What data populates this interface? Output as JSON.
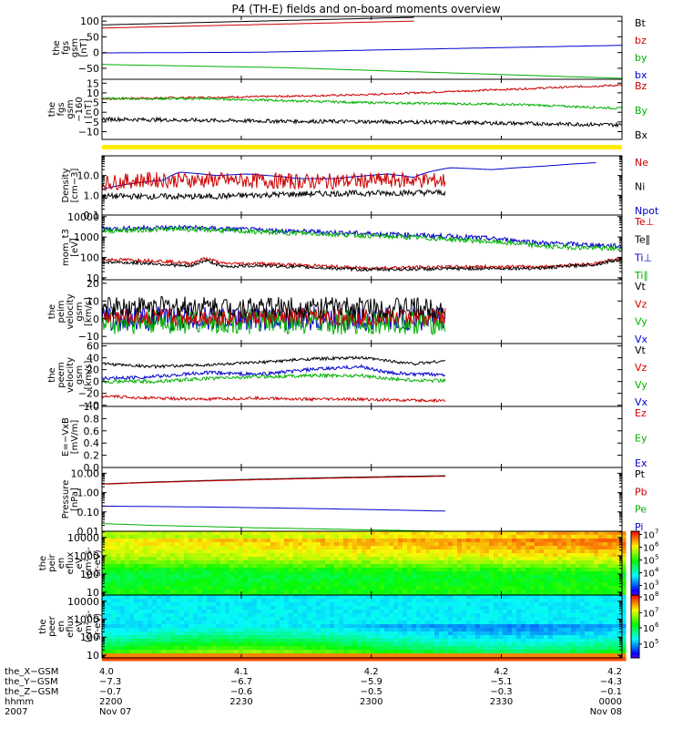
{
  "title": "P4 (TH-E) fields and on-board moments overview",
  "panels": [
    {
      "id": "fgs",
      "ylabel": [
        "the",
        "fgs",
        "gsm",
        "[nT]"
      ],
      "ticks": [
        {
          "v": 100,
          "l": "100"
        },
        {
          "v": 50,
          "l": "50"
        },
        {
          "v": 0,
          "l": "0"
        },
        {
          "v": -50,
          "l": "−50"
        }
      ],
      "ylim": [
        -85,
        115
      ],
      "log": false,
      "legend": [
        {
          "t": "Bt",
          "c": "#000000"
        },
        {
          "t": "bz",
          "c": "#cc0000"
        },
        {
          "t": "by",
          "c": "#00b000"
        },
        {
          "t": "bx",
          "c": "#0000cc"
        }
      ],
      "series": [
        {
          "name": "Bt",
          "color": "#000000",
          "x": [
            0,
            0.6
          ],
          "y": [
            88,
            112
          ]
        },
        {
          "name": "bz",
          "color": "#cc0000",
          "x": [
            0,
            0.6
          ],
          "y": [
            78,
            100
          ]
        },
        {
          "name": "by",
          "color": "#00b000",
          "x": [
            0,
            0.35,
            1
          ],
          "y": [
            -38,
            -48,
            -82
          ]
        },
        {
          "name": "bx",
          "color": "#0000cc",
          "x": [
            0,
            0.3,
            1
          ],
          "y": [
            -1,
            1,
            23
          ]
        }
      ]
    },
    {
      "id": "fgs-dsl",
      "ylabel": [
        "the",
        "fgs",
        "gsm",
        "−160",
        "[nT]"
      ],
      "ticks": [
        {
          "v": 15,
          "l": "15"
        },
        {
          "v": 10,
          "l": "10"
        },
        {
          "v": 5,
          "l": "5"
        },
        {
          "v": 0,
          "l": "0"
        },
        {
          "v": -5,
          "l": "−5"
        },
        {
          "v": -10,
          "l": "−10"
        }
      ],
      "ylim": [
        -14,
        17
      ],
      "log": false,
      "legend": [
        {
          "t": "Bz",
          "c": "#cc0000"
        },
        {
          "t": "By",
          "c": "#00b000"
        },
        {
          "t": "Bx",
          "c": "#000000"
        }
      ],
      "series": [
        {
          "name": "Bz",
          "color": "#cc0000",
          "x": [
            0,
            0.3,
            0.5,
            0.7,
            1
          ],
          "y": [
            7,
            8,
            9,
            11,
            14
          ],
          "noise": 0.5
        },
        {
          "name": "By",
          "color": "#00b000",
          "x": [
            0,
            0.2,
            0.5,
            0.8,
            1
          ],
          "y": [
            7,
            7,
            5,
            4,
            2
          ],
          "noise": 0.6
        },
        {
          "name": "Bx",
          "color": "#000000",
          "x": [
            0,
            0.3,
            0.6,
            1
          ],
          "y": [
            -3.5,
            -4.5,
            -5,
            -6.5
          ],
          "noise": 1.0
        }
      ]
    },
    {
      "id": "density",
      "ylabel": [
        "Density",
        "[cm−3]"
      ],
      "ticks": [
        {
          "v": 10,
          "l": "10.0"
        },
        {
          "v": 1,
          "l": "1.0"
        },
        {
          "v": 0.1,
          "l": "0.1"
        }
      ],
      "ylim": [
        0.1,
        100
      ],
      "log": true,
      "legend": [
        {
          "t": "Ne",
          "c": "#cc0000"
        },
        {
          "t": "Ni",
          "c": "#000000"
        },
        {
          "t": "Npot",
          "c": "#0000cc"
        }
      ],
      "series": [
        {
          "name": "Npot",
          "color": "#0000cc",
          "x": [
            0,
            0.12,
            0.15,
            0.22,
            0.28,
            0.38,
            0.45,
            0.55,
            0.6,
            0.67,
            0.75,
            0.85,
            0.95
          ],
          "y": [
            2,
            6,
            15,
            10,
            12,
            7,
            7,
            12,
            8,
            25,
            20,
            30,
            45
          ]
        },
        {
          "name": "Ne",
          "color": "#cc0000",
          "x": [
            0,
            0.08,
            0.2,
            0.4,
            0.6,
            0.66
          ],
          "y": [
            4,
            6,
            6,
            5,
            6,
            5.5
          ],
          "noise": 0.4
        },
        {
          "name": "Ni",
          "color": "#000000",
          "x": [
            0,
            0.2,
            0.4,
            0.66
          ],
          "y": [
            0.9,
            0.85,
            1.2,
            1.4
          ],
          "noise": 0.15
        }
      ]
    },
    {
      "id": "temperature",
      "ylabel": [
        "mom_t3",
        "[eV]"
      ],
      "ticks": [
        {
          "v": 10000,
          "l": "10000"
        },
        {
          "v": 1000,
          "l": "1000"
        },
        {
          "v": 100,
          "l": "100"
        },
        {
          "v": 10,
          "l": "10"
        }
      ],
      "ylim": [
        8,
        12000
      ],
      "log": true,
      "legend": [
        {
          "t": "Te⊥",
          "c": "#cc0000"
        },
        {
          "t": "Te∥",
          "c": "#000000"
        },
        {
          "t": "Ti⊥",
          "c": "#0000cc"
        },
        {
          "t": "Ti∥",
          "c": "#00b000"
        }
      ],
      "series": [
        {
          "name": "Ti⊥",
          "color": "#0000cc",
          "x": [
            0,
            0.15,
            0.3,
            0.5,
            0.7,
            0.85,
            1
          ],
          "y": [
            2500,
            3000,
            2200,
            1500,
            1000,
            500,
            350
          ],
          "noise": 0.12
        },
        {
          "name": "Ti∥",
          "color": "#00b000",
          "x": [
            0,
            0.15,
            0.3,
            0.5,
            0.7,
            0.85,
            1
          ],
          "y": [
            2000,
            2500,
            1800,
            1200,
            700,
            350,
            260
          ],
          "noise": 0.12
        },
        {
          "name": "Te⊥",
          "color": "#cc0000",
          "x": [
            0,
            0.1,
            0.17,
            0.2,
            0.23,
            0.3,
            0.5,
            0.7,
            0.85,
            0.95,
            1
          ],
          "y": [
            80,
            70,
            50,
            90,
            50,
            50,
            30,
            35,
            35,
            50,
            90
          ],
          "noise": 0.08
        },
        {
          "name": "Te∥",
          "color": "#000000",
          "x": [
            0,
            0.1,
            0.17,
            0.2,
            0.23,
            0.3,
            0.5,
            0.7,
            0.85,
            0.95,
            1
          ],
          "y": [
            60,
            50,
            35,
            70,
            35,
            40,
            25,
            28,
            30,
            45,
            80
          ],
          "noise": 0.08
        }
      ]
    },
    {
      "id": "ion-velocity",
      "ylabel": [
        "the",
        "peim",
        "velocity",
        "gsm",
        "[km/s]"
      ],
      "ticks": [
        {
          "v": 20,
          "l": "20"
        },
        {
          "v": 10,
          "l": "10"
        },
        {
          "v": 0,
          "l": "0"
        },
        {
          "v": -10,
          "l": "−10"
        }
      ],
      "ylim": [
        -14,
        22
      ],
      "log": false,
      "legend": [
        {
          "t": "Vt",
          "c": "#000000"
        },
        {
          "t": "Vz",
          "c": "#cc0000"
        },
        {
          "t": "Vy",
          "c": "#00b000"
        },
        {
          "t": "Vx",
          "c": "#0000cc"
        }
      ],
      "series": [
        {
          "name": "Vx",
          "color": "#0000cc",
          "x": [
            0,
            0.66
          ],
          "y": [
            0,
            0
          ],
          "noise": 7
        },
        {
          "name": "Vy",
          "color": "#00b000",
          "x": [
            0,
            0.66
          ],
          "y": [
            -2,
            -2
          ],
          "noise": 7
        },
        {
          "name": "Vz",
          "color": "#cc0000",
          "x": [
            0,
            0.66
          ],
          "y": [
            1,
            1
          ],
          "noise": 5
        },
        {
          "name": "Vt",
          "color": "#000000",
          "x": [
            0,
            0.66
          ],
          "y": [
            7,
            6
          ],
          "noise": 6
        }
      ]
    },
    {
      "id": "electron-velocity",
      "ylabel": [
        "the",
        "peem",
        "velocity",
        "gsm",
        "[km/s]"
      ],
      "ticks": [
        {
          "v": 60,
          "l": "60"
        },
        {
          "v": 40,
          "l": "40"
        },
        {
          "v": 20,
          "l": "20"
        },
        {
          "v": 0,
          "l": "0"
        },
        {
          "v": -20,
          "l": "−20"
        },
        {
          "v": -40,
          "l": "−40"
        }
      ],
      "ylim": [
        -42,
        64
      ],
      "log": false,
      "legend": [
        {
          "t": "Vt",
          "c": "#000000"
        },
        {
          "t": "Vz",
          "c": "#cc0000"
        },
        {
          "t": "Vy",
          "c": "#00b000"
        },
        {
          "t": "Vx",
          "c": "#0000cc"
        }
      ],
      "series": [
        {
          "name": "Vt",
          "color": "#000000",
          "x": [
            0,
            0.1,
            0.2,
            0.3,
            0.4,
            0.5,
            0.55,
            0.6,
            0.66
          ],
          "y": [
            30,
            25,
            28,
            32,
            38,
            40,
            35,
            30,
            35
          ],
          "noise": 2.5
        },
        {
          "name": "Vx",
          "color": "#0000cc",
          "x": [
            0,
            0.1,
            0.2,
            0.3,
            0.4,
            0.5,
            0.55,
            0.6,
            0.66
          ],
          "y": [
            5,
            8,
            15,
            12,
            20,
            25,
            15,
            12,
            12
          ],
          "noise": 3
        },
        {
          "name": "Vy",
          "color": "#00b000",
          "x": [
            0,
            0.1,
            0.2,
            0.3,
            0.4,
            0.5,
            0.55,
            0.6,
            0.66
          ],
          "y": [
            0,
            0,
            5,
            8,
            10,
            10,
            5,
            2,
            2
          ],
          "noise": 3
        },
        {
          "name": "Vz",
          "color": "#cc0000",
          "x": [
            0,
            0.1,
            0.2,
            0.3,
            0.4,
            0.5,
            0.6,
            0.66
          ],
          "y": [
            -25,
            -28,
            -30,
            -28,
            -30,
            -30,
            -32,
            -32
          ],
          "noise": 2.5
        }
      ]
    },
    {
      "id": "efield",
      "ylabel": [
        "E=−VxB",
        "[mV/m]"
      ],
      "ticks": [
        {
          "v": 1,
          "l": "1.0"
        },
        {
          "v": 0.8,
          "l": "0.8"
        },
        {
          "v": 0.6,
          "l": "0.6"
        },
        {
          "v": 0.4,
          "l": "0.4"
        },
        {
          "v": 0.2,
          "l": "0.2"
        },
        {
          "v": 0,
          "l": "0.0"
        }
      ],
      "ylim": [
        0,
        1
      ],
      "log": false,
      "legend": [
        {
          "t": "Ez",
          "c": "#cc0000"
        },
        {
          "t": "Ey",
          "c": "#00b000"
        },
        {
          "t": "Ex",
          "c": "#0000cc"
        }
      ],
      "series": []
    },
    {
      "id": "pressure",
      "ylabel": [
        "Pressure",
        "[nPa]"
      ],
      "ticks": [
        {
          "v": 10,
          "l": "10.00"
        },
        {
          "v": 1,
          "l": "1.00"
        },
        {
          "v": 0.1,
          "l": "0.10"
        },
        {
          "v": 0.01,
          "l": "0.01"
        }
      ],
      "ylim": [
        0.01,
        20
      ],
      "log": true,
      "legend": [
        {
          "t": "Pt",
          "c": "#000000"
        },
        {
          "t": "Pb",
          "c": "#cc0000"
        },
        {
          "t": "Pe",
          "c": "#00b000"
        },
        {
          "t": "Pi",
          "c": "#0000cc"
        }
      ],
      "series": [
        {
          "name": "Pt",
          "color": "#000000",
          "x": [
            0,
            0.66
          ],
          "y": [
            2.8,
            7.5
          ]
        },
        {
          "name": "Pb",
          "color": "#cc0000",
          "x": [
            0,
            0.66
          ],
          "y": [
            2.7,
            7
          ]
        },
        {
          "name": "Pi",
          "color": "#0000cc",
          "x": [
            0,
            0.2,
            0.4,
            0.66
          ],
          "y": [
            0.2,
            0.18,
            0.15,
            0.11
          ]
        },
        {
          "name": "Pe",
          "color": "#00b000",
          "x": [
            0,
            0.1,
            0.3,
            0.5,
            0.66
          ],
          "y": [
            0.025,
            0.02,
            0.015,
            0.012,
            0.01
          ]
        }
      ]
    },
    {
      "id": "ion-spectrogram",
      "ylabel": [
        "the",
        "peir",
        "en",
        "eflux",
        "eV",
        "(cm²-s-",
        "sr-eV)"
      ],
      "ticks": [
        {
          "v": 10000,
          "l": "10000"
        },
        {
          "v": 1000,
          "l": "1000"
        },
        {
          "v": 100,
          "l": "100"
        },
        {
          "v": 10,
          "l": "10"
        }
      ],
      "ylim": [
        7,
        22000
      ],
      "log": true,
      "spectrogram": "ion",
      "colorbar": {
        "ticks": [
          {
            "e": "7",
            "f": 0.95
          },
          {
            "e": "6",
            "f": 0.75
          },
          {
            "e": "5",
            "f": 0.55
          },
          {
            "e": "4",
            "f": 0.35
          },
          {
            "e": "3",
            "f": 0.15
          }
        ]
      },
      "series": []
    },
    {
      "id": "electron-spectrogram",
      "ylabel": [
        "the",
        "peer",
        "en",
        "eflux",
        "eV",
        "(cm²-s-",
        "sr-eV)"
      ],
      "ticks": [
        {
          "v": 10000,
          "l": "10000"
        },
        {
          "v": 1000,
          "l": "1000"
        },
        {
          "v": 100,
          "l": "100"
        },
        {
          "v": 10,
          "l": "10"
        }
      ],
      "ylim": [
        7,
        22000
      ],
      "log": true,
      "spectrogram": "electron",
      "colorbar": {
        "ticks": [
          {
            "e": "8",
            "f": 0.97
          },
          {
            "e": "7",
            "f": 0.72
          },
          {
            "e": "6",
            "f": 0.48
          },
          {
            "e": "5",
            "f": 0.22
          }
        ]
      },
      "series": []
    }
  ],
  "footer": {
    "labels": [
      "the_X−GSM",
      "the_Y−GSM",
      "the_Z−GSM",
      "hhmm",
      "2007"
    ],
    "columns": [
      {
        "f": 0,
        "vals": [
          "4.0",
          "−7.3",
          "−0.7",
          "2200",
          "Nov 07"
        ]
      },
      {
        "f": 0.2679,
        "vals": [
          "4.1",
          "−6.7",
          "−0.6",
          "2230",
          ""
        ]
      },
      {
        "f": 0.5179,
        "vals": [
          "4.2",
          "−5.9",
          "−0.5",
          "2300",
          ""
        ]
      },
      {
        "f": 0.7679,
        "vals": [
          "4.2",
          "−5.1",
          "−0.3",
          "2330",
          ""
        ]
      },
      {
        "f": 1,
        "vals": [
          "4.2",
          "−4.3",
          "−0.1",
          "0000",
          "Nov 08"
        ]
      }
    ]
  },
  "chart_data": {
    "type": "line",
    "title": "P4 (TH-E) fields and on-board moments overview",
    "xlabel": "hhmm",
    "x_ticks": [
      "2200",
      "2230",
      "2300",
      "2330",
      "0000"
    ],
    "date_start": "Nov 07 2007",
    "date_end": "Nov 08 2007",
    "panels": [
      "fgs gsm [nT]",
      "fgs gsm-160 [nT]",
      "Density [cm-3]",
      "mom_t3 [eV]",
      "peim velocity gsm [km/s]",
      "peem velocity gsm [km/s]",
      "E=-VxB [mV/m]",
      "Pressure [nPa]",
      "peir en eflux",
      "peer en eflux"
    ]
  }
}
